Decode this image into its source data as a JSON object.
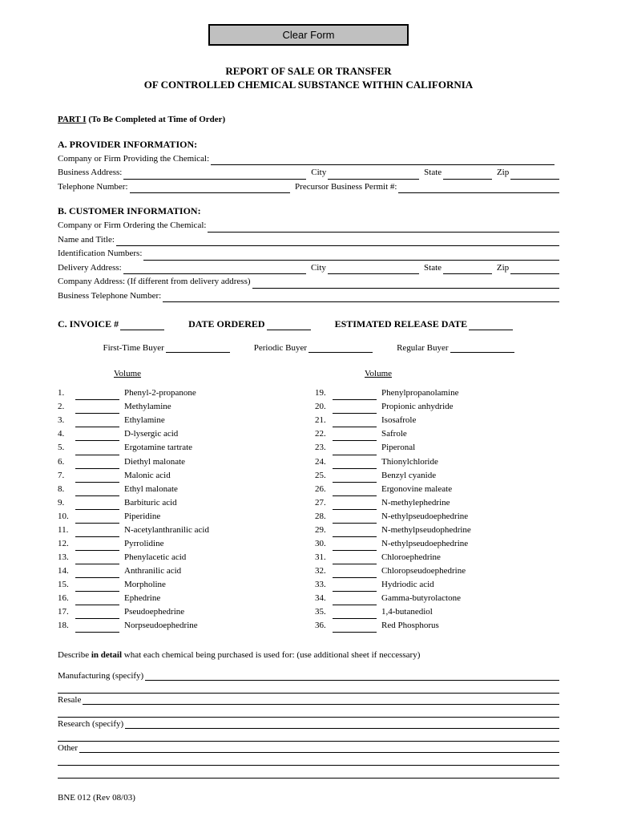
{
  "button": {
    "clear": "Clear Form"
  },
  "title": {
    "line1": "REPORT OF SALE OR TRANSFER",
    "line2": "OF CONTROLLED CHEMICAL SUBSTANCE WITHIN CALIFORNIA"
  },
  "part1": {
    "label": "PART I",
    "note": "(To Be Completed at Time of Order)"
  },
  "sectionA": {
    "head": "A.  PROVIDER INFORMATION:",
    "company": "Company or Firm Providing the Chemical:",
    "addr": "Business Address:",
    "city": "City",
    "state": "State",
    "zip": "Zip",
    "tel": "Telephone Number:",
    "permit": "Precursor Business Permit #:"
  },
  "sectionB": {
    "head": "B.  CUSTOMER INFORMATION:",
    "company": "Company or Firm Ordering the Chemical:",
    "name": "Name and Title:",
    "id": "Identification Numbers:",
    "deliv": "Delivery Address:",
    "city": "City",
    "state": "State",
    "zip": "Zip",
    "coaddr": "Company Address: (If different from delivery address)",
    "tel": "Business Telephone Number:"
  },
  "sectionC": {
    "invoice": "C.  INVOICE #",
    "date": "DATE ORDERED",
    "est": "ESTIMATED RELEASE DATE",
    "first": "First-Time Buyer",
    "periodic": "Periodic Buyer",
    "regular": "Regular Buyer",
    "volume": "Volume"
  },
  "chemicals_left": [
    {
      "n": "1.",
      "name": "Phenyl-2-propanone"
    },
    {
      "n": "2.",
      "name": "Methylamine"
    },
    {
      "n": "3.",
      "name": "Ethylamine"
    },
    {
      "n": "4.",
      "name": "D-lysergic acid"
    },
    {
      "n": "5.",
      "name": "Ergotamine tartrate"
    },
    {
      "n": "6.",
      "name": "Diethyl malonate"
    },
    {
      "n": "7.",
      "name": "Malonic acid"
    },
    {
      "n": "8.",
      "name": "Ethyl malonate"
    },
    {
      "n": "9.",
      "name": "Barbituric acid"
    },
    {
      "n": "10.",
      "name": "Piperidine"
    },
    {
      "n": "11.",
      "name": "N-acetylanthranilic acid"
    },
    {
      "n": "12.",
      "name": "Pyrrolidine"
    },
    {
      "n": "13.",
      "name": "Phenylacetic acid"
    },
    {
      "n": "14.",
      "name": "Anthranilic acid"
    },
    {
      "n": "15.",
      "name": "Morpholine"
    },
    {
      "n": "16.",
      "name": "Ephedrine"
    },
    {
      "n": "17.",
      "name": "Pseudoephedrine"
    },
    {
      "n": "18.",
      "name": "Norpseudoephedrine"
    }
  ],
  "chemicals_right": [
    {
      "n": "19.",
      "name": "Phenylpropanolamine"
    },
    {
      "n": "20.",
      "name": "Propionic anhydride"
    },
    {
      "n": "21.",
      "name": "Isosafrole"
    },
    {
      "n": "22.",
      "name": "Safrole"
    },
    {
      "n": "23.",
      "name": "Piperonal"
    },
    {
      "n": "24.",
      "name": "Thionylchloride"
    },
    {
      "n": "25.",
      "name": "Benzyl cyanide"
    },
    {
      "n": "26.",
      "name": "Ergonovine maleate"
    },
    {
      "n": "27.",
      "name": "N-methylephedrine"
    },
    {
      "n": "28.",
      "name": "N-ethylpseudoephedrine"
    },
    {
      "n": "29.",
      "name": "N-methylpseudophedrine"
    },
    {
      "n": "30.",
      "name": "N-ethylpseudoephedrine"
    },
    {
      "n": "31.",
      "name": "Chloroephedrine"
    },
    {
      "n": "32.",
      "name": "Chloropseudoephedrine"
    },
    {
      "n": "33.",
      "name": "Hydriodic acid"
    },
    {
      "n": "34.",
      "name": "Gamma-butyrolactone"
    },
    {
      "n": "35.",
      "name": "1,4-butanediol"
    },
    {
      "n": "36.",
      "name": "Red Phosphorus"
    }
  ],
  "describe": {
    "pre": "Describe ",
    "bold": "in detail",
    "post": " what each chemical being purchased is used for:    (use additional sheet if neccessary)",
    "manuf": "Manufacturing (specify)",
    "resale": "Resale",
    "research": "Research (specify)",
    "other": "Other"
  },
  "footer": "BNE 012 (Rev 08/03)"
}
